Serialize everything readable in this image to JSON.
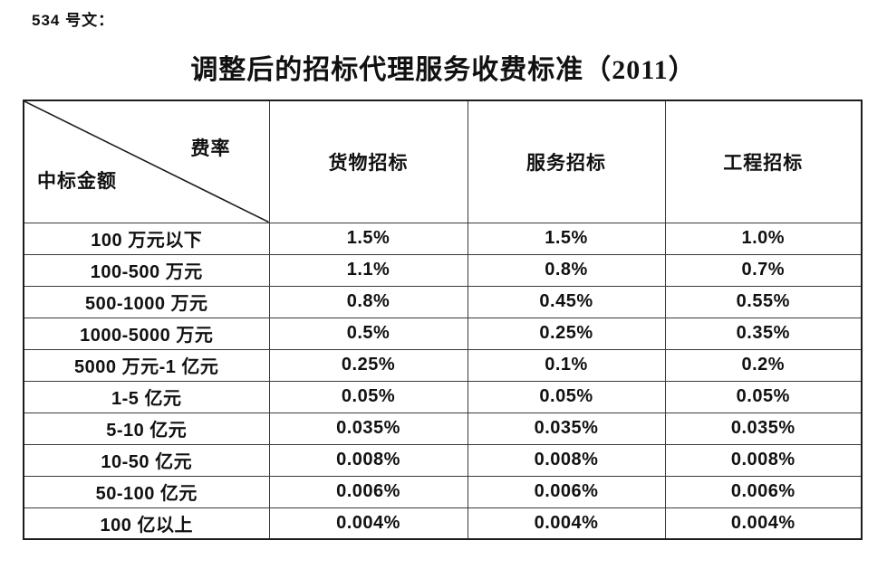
{
  "page": {
    "doc_label": "534 号文：",
    "title": "调整后的招标代理服务收费标准（2011）"
  },
  "colors": {
    "background": "#ffffff",
    "text": "#111111",
    "table_border": "#1c1c1c"
  },
  "table": {
    "corner": {
      "top_right_label": "费率",
      "bottom_left_label": "中标金额"
    },
    "columns": [
      "货物招标",
      "服务招标",
      "工程招标"
    ],
    "rows": [
      {
        "label": "100 万元以下",
        "values": [
          "1.5%",
          "1.5%",
          "1.0%"
        ]
      },
      {
        "label": "100-500 万元",
        "values": [
          "1.1%",
          "0.8%",
          "0.7%"
        ]
      },
      {
        "label": "500-1000 万元",
        "values": [
          "0.8%",
          "0.45%",
          "0.55%"
        ]
      },
      {
        "label": "1000-5000 万元",
        "values": [
          "0.5%",
          "0.25%",
          "0.35%"
        ]
      },
      {
        "label": "5000 万元-1 亿元",
        "values": [
          "0.25%",
          "0.1%",
          "0.2%"
        ]
      },
      {
        "label": "1-5 亿元",
        "values": [
          "0.05%",
          "0.05%",
          "0.05%"
        ]
      },
      {
        "label": "5-10 亿元",
        "values": [
          "0.035%",
          "0.035%",
          "0.035%"
        ]
      },
      {
        "label": "10-50 亿元",
        "values": [
          "0.008%",
          "0.008%",
          "0.008%"
        ]
      },
      {
        "label": "50-100 亿元",
        "values": [
          "0.006%",
          "0.006%",
          "0.006%"
        ]
      },
      {
        "label": "100 亿以上",
        "values": [
          "0.004%",
          "0.004%",
          "0.004%"
        ]
      }
    ]
  }
}
